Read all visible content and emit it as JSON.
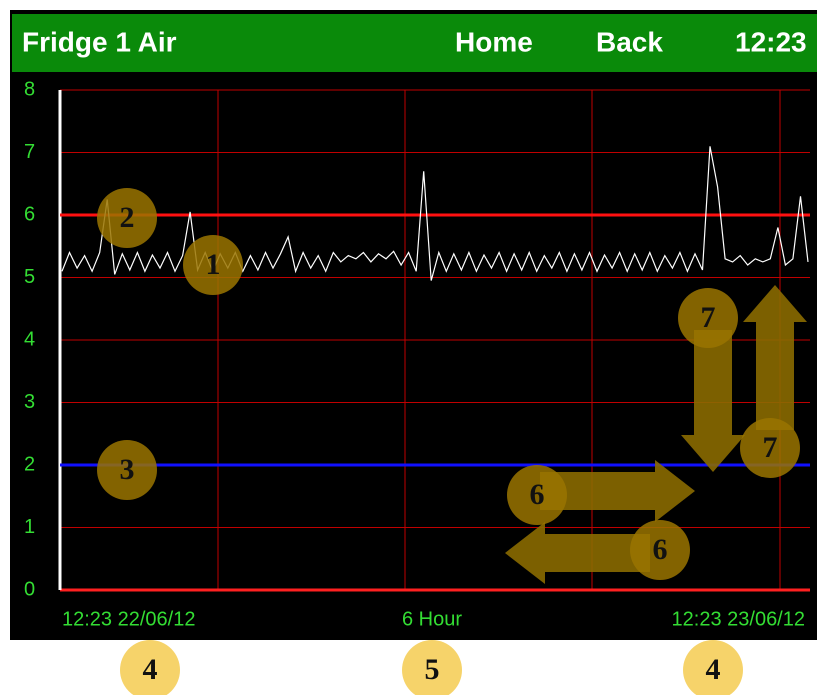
{
  "header": {
    "title": "Fridge 1 Air",
    "home": "Home",
    "back": "Back",
    "time": "12:23"
  },
  "chart_data": {
    "type": "line",
    "ylim": [
      0,
      8
    ],
    "yticks": [
      0,
      1,
      2,
      3,
      4,
      5,
      6,
      7,
      8
    ],
    "grid": true,
    "grid_color": "#c00000",
    "x_labels": [
      "12:23 22/06/12",
      "6 Hour",
      "12:23 23/06/12"
    ],
    "reference_lines": [
      {
        "value": 6,
        "color": "#ff1010"
      },
      {
        "value": 2,
        "color": "#1010ff"
      }
    ],
    "series": [
      {
        "color": "#ffffff",
        "values": [
          5.1,
          5.4,
          5.15,
          5.35,
          5.1,
          5.4,
          6.25,
          5.05,
          5.38,
          5.12,
          5.4,
          5.1,
          5.36,
          5.15,
          5.4,
          5.1,
          5.35,
          6.05,
          5.12,
          5.4,
          5.1,
          5.38,
          5.15,
          5.4,
          5.1,
          5.35,
          5.12,
          5.4,
          5.15,
          5.38,
          5.65,
          5.1,
          5.4,
          5.15,
          5.35,
          5.1,
          5.4,
          5.25,
          5.35,
          5.3,
          5.4,
          5.25,
          5.38,
          5.3,
          5.42,
          5.2,
          5.4,
          5.1,
          6.7,
          4.95,
          5.4,
          5.1,
          5.38,
          5.12,
          5.4,
          5.1,
          5.36,
          5.15,
          5.4,
          5.1,
          5.38,
          5.12,
          5.4,
          5.1,
          5.35,
          5.15,
          5.4,
          5.1,
          5.38,
          5.12,
          5.4,
          5.1,
          5.36,
          5.15,
          5.4,
          5.1,
          5.38,
          5.12,
          5.4,
          5.1,
          5.35,
          5.15,
          5.4,
          5.1,
          5.38,
          5.12,
          7.1,
          6.45,
          5.3,
          5.25,
          5.35,
          5.2,
          5.3,
          5.25,
          5.3,
          5.8,
          5.2,
          5.3,
          6.3,
          5.25
        ]
      }
    ]
  },
  "annotations": [
    "1",
    "2",
    "3",
    "4",
    "5",
    "4",
    "6",
    "6",
    "7",
    "7"
  ]
}
